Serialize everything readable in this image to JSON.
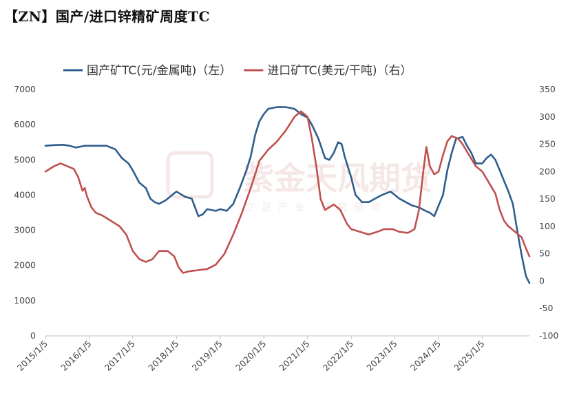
{
  "title": "【ZN】国产/进口锌精矿周度TC",
  "watermark": {
    "name": "紫金天风期货",
    "slogan": "立足产业 研究驱动"
  },
  "chart_data": {
    "type": "line",
    "title": "【ZN】国产/进口锌精矿周度TC",
    "x_ticks": [
      "2015/1/5",
      "2016/1/5",
      "2017/1/5",
      "2018/1/5",
      "2019/1/5",
      "2020/1/5",
      "2021/1/5",
      "2022/1/5",
      "2023/1/5",
      "2024/1/5",
      "2025/1/5"
    ],
    "x_range": [
      2015.0,
      2026.08
    ],
    "y_left": {
      "range": [
        0,
        7000
      ],
      "ticks": [
        "0",
        "1000",
        "2000",
        "3000",
        "4000",
        "5000",
        "6000",
        "7000"
      ]
    },
    "y_right": {
      "range": [
        -100,
        350
      ],
      "ticks": [
        "-100",
        "-50",
        "0",
        "50",
        "100",
        "150",
        "200",
        "250",
        "300",
        "350"
      ]
    },
    "grid": false,
    "legend_position": "top",
    "series": [
      {
        "name": "国产矿TC(元/金属吨)（左）",
        "axis": "left",
        "color": "#2e5d8c",
        "points": [
          [
            2015.0,
            5400
          ],
          [
            2015.2,
            5420
          ],
          [
            2015.4,
            5430
          ],
          [
            2015.55,
            5400
          ],
          [
            2015.7,
            5350
          ],
          [
            2015.9,
            5400
          ],
          [
            2016.2,
            5400
          ],
          [
            2016.4,
            5400
          ],
          [
            2016.6,
            5300
          ],
          [
            2016.75,
            5050
          ],
          [
            2016.9,
            4900
          ],
          [
            2017.0,
            4700
          ],
          [
            2017.15,
            4350
          ],
          [
            2017.3,
            4200
          ],
          [
            2017.4,
            3900
          ],
          [
            2017.5,
            3800
          ],
          [
            2017.6,
            3750
          ],
          [
            2017.75,
            3850
          ],
          [
            2017.9,
            4000
          ],
          [
            2018.0,
            4100
          ],
          [
            2018.2,
            3950
          ],
          [
            2018.35,
            3900
          ],
          [
            2018.5,
            3400
          ],
          [
            2018.6,
            3450
          ],
          [
            2018.7,
            3600
          ],
          [
            2018.9,
            3550
          ],
          [
            2019.0,
            3600
          ],
          [
            2019.15,
            3550
          ],
          [
            2019.3,
            3750
          ],
          [
            2019.45,
            4200
          ],
          [
            2019.6,
            4700
          ],
          [
            2019.7,
            5100
          ],
          [
            2019.8,
            5700
          ],
          [
            2019.9,
            6100
          ],
          [
            2020.0,
            6300
          ],
          [
            2020.1,
            6450
          ],
          [
            2020.3,
            6500
          ],
          [
            2020.5,
            6500
          ],
          [
            2020.7,
            6450
          ],
          [
            2020.85,
            6300
          ],
          [
            2021.0,
            6200
          ],
          [
            2021.1,
            6000
          ],
          [
            2021.25,
            5600
          ],
          [
            2021.4,
            5050
          ],
          [
            2021.5,
            5000
          ],
          [
            2021.6,
            5200
          ],
          [
            2021.7,
            5500
          ],
          [
            2021.78,
            5450
          ],
          [
            2021.85,
            5100
          ],
          [
            2022.0,
            4500
          ],
          [
            2022.1,
            4000
          ],
          [
            2022.25,
            3800
          ],
          [
            2022.4,
            3800
          ],
          [
            2022.55,
            3900
          ],
          [
            2022.7,
            4000
          ],
          [
            2022.9,
            4100
          ],
          [
            2023.0,
            4000
          ],
          [
            2023.1,
            3900
          ],
          [
            2023.25,
            3800
          ],
          [
            2023.4,
            3700
          ],
          [
            2023.55,
            3650
          ],
          [
            2023.7,
            3550
          ],
          [
            2023.8,
            3500
          ],
          [
            2023.9,
            3400
          ],
          [
            2024.0,
            3700
          ],
          [
            2024.1,
            4000
          ],
          [
            2024.2,
            4700
          ],
          [
            2024.3,
            5200
          ],
          [
            2024.4,
            5600
          ],
          [
            2024.55,
            5650
          ],
          [
            2024.65,
            5400
          ],
          [
            2024.75,
            5200
          ],
          [
            2024.85,
            4900
          ],
          [
            2025.0,
            4900
          ],
          [
            2025.1,
            5050
          ],
          [
            2025.2,
            5150
          ],
          [
            2025.3,
            5000
          ],
          [
            2025.4,
            4700
          ],
          [
            2025.5,
            4400
          ],
          [
            2025.6,
            4100
          ],
          [
            2025.7,
            3750
          ],
          [
            2025.8,
            3000
          ],
          [
            2025.9,
            2300
          ],
          [
            2026.0,
            1700
          ],
          [
            2026.08,
            1500
          ]
        ]
      },
      {
        "name": "进口矿TC(美元/干吨)（右）",
        "axis": "right",
        "color": "#c0504d",
        "points": [
          [
            2015.0,
            200
          ],
          [
            2015.1,
            205
          ],
          [
            2015.2,
            210
          ],
          [
            2015.35,
            215
          ],
          [
            2015.5,
            210
          ],
          [
            2015.65,
            205
          ],
          [
            2015.75,
            190
          ],
          [
            2015.85,
            165
          ],
          [
            2015.9,
            170
          ],
          [
            2015.95,
            155
          ],
          [
            2016.05,
            135
          ],
          [
            2016.15,
            125
          ],
          [
            2016.3,
            120
          ],
          [
            2016.5,
            110
          ],
          [
            2016.7,
            100
          ],
          [
            2016.85,
            85
          ],
          [
            2017.0,
            55
          ],
          [
            2017.15,
            40
          ],
          [
            2017.3,
            35
          ],
          [
            2017.45,
            40
          ],
          [
            2017.6,
            55
          ],
          [
            2017.8,
            55
          ],
          [
            2017.95,
            45
          ],
          [
            2018.05,
            25
          ],
          [
            2018.15,
            15
          ],
          [
            2018.3,
            18
          ],
          [
            2018.5,
            20
          ],
          [
            2018.7,
            22
          ],
          [
            2018.9,
            30
          ],
          [
            2019.1,
            50
          ],
          [
            2019.3,
            85
          ],
          [
            2019.5,
            125
          ],
          [
            2019.7,
            170
          ],
          [
            2019.9,
            220
          ],
          [
            2020.1,
            240
          ],
          [
            2020.3,
            255
          ],
          [
            2020.5,
            275
          ],
          [
            2020.7,
            300
          ],
          [
            2020.85,
            310
          ],
          [
            2021.0,
            300
          ],
          [
            2021.1,
            260
          ],
          [
            2021.2,
            210
          ],
          [
            2021.3,
            150
          ],
          [
            2021.4,
            130
          ],
          [
            2021.6,
            140
          ],
          [
            2021.75,
            130
          ],
          [
            2021.9,
            105
          ],
          [
            2022.0,
            95
          ],
          [
            2022.2,
            90
          ],
          [
            2022.4,
            85
          ],
          [
            2022.6,
            90
          ],
          [
            2022.75,
            95
          ],
          [
            2022.95,
            95
          ],
          [
            2023.1,
            90
          ],
          [
            2023.3,
            88
          ],
          [
            2023.45,
            95
          ],
          [
            2023.55,
            130
          ],
          [
            2023.65,
            200
          ],
          [
            2023.72,
            245
          ],
          [
            2023.8,
            210
          ],
          [
            2023.9,
            195
          ],
          [
            2024.0,
            200
          ],
          [
            2024.1,
            230
          ],
          [
            2024.2,
            255
          ],
          [
            2024.3,
            265
          ],
          [
            2024.45,
            260
          ],
          [
            2024.55,
            250
          ],
          [
            2024.7,
            230
          ],
          [
            2024.85,
            210
          ],
          [
            2025.0,
            200
          ],
          [
            2025.15,
            180
          ],
          [
            2025.3,
            160
          ],
          [
            2025.4,
            130
          ],
          [
            2025.5,
            110
          ],
          [
            2025.6,
            100
          ],
          [
            2025.75,
            90
          ],
          [
            2025.9,
            80
          ],
          [
            2026.0,
            60
          ],
          [
            2026.08,
            45
          ]
        ]
      }
    ]
  }
}
